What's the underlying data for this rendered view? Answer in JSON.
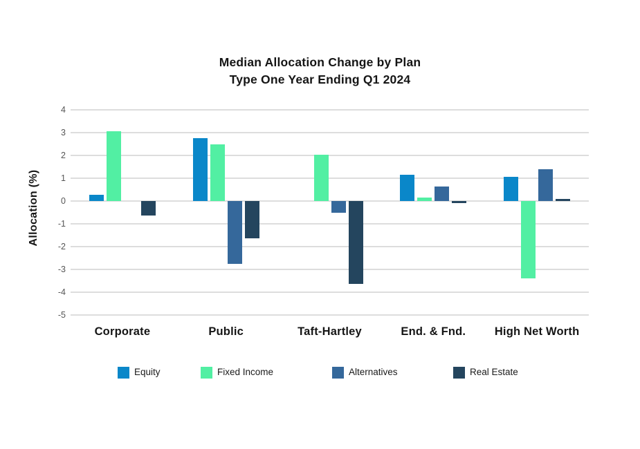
{
  "title": {
    "line1": "Median Allocation Change by Plan",
    "line2": "Type One Year Ending Q1 2024"
  },
  "chart_data": {
    "type": "bar",
    "title": "Median Allocation Change by Plan Type One Year Ending Q1 2024",
    "xlabel": "",
    "ylabel": "Allocation (%)",
    "ylim": [
      -5,
      4
    ],
    "yticks": [
      4,
      3,
      2,
      1,
      0,
      -1,
      -2,
      -3,
      -4,
      -5
    ],
    "grid": true,
    "legend_position": "bottom",
    "categories": [
      "Corporate",
      "Public",
      "Taft-Hartley",
      "End. & Fnd.",
      "High Net Worth"
    ],
    "series": [
      {
        "name": "Equity",
        "color": "#0a87c9",
        "values": [
          0.27,
          2.75,
          0,
          1.15,
          1.05
        ]
      },
      {
        "name": "Fixed Income",
        "color": "#52efa3",
        "values": [
          3.05,
          2.48,
          2.02,
          0.15,
          -3.4
        ]
      },
      {
        "name": "Alternatives",
        "color": "#35689b",
        "values": [
          0,
          -2.75,
          -0.5,
          0.65,
          1.4
        ]
      },
      {
        "name": "Real Estate",
        "color": "#24455e",
        "values": [
          -0.65,
          -1.65,
          -3.65,
          -0.08,
          0.1
        ]
      }
    ],
    "colors": {
      "gridline": "#dddddd",
      "tick_text": "#555555",
      "label_text": "#151515"
    }
  }
}
